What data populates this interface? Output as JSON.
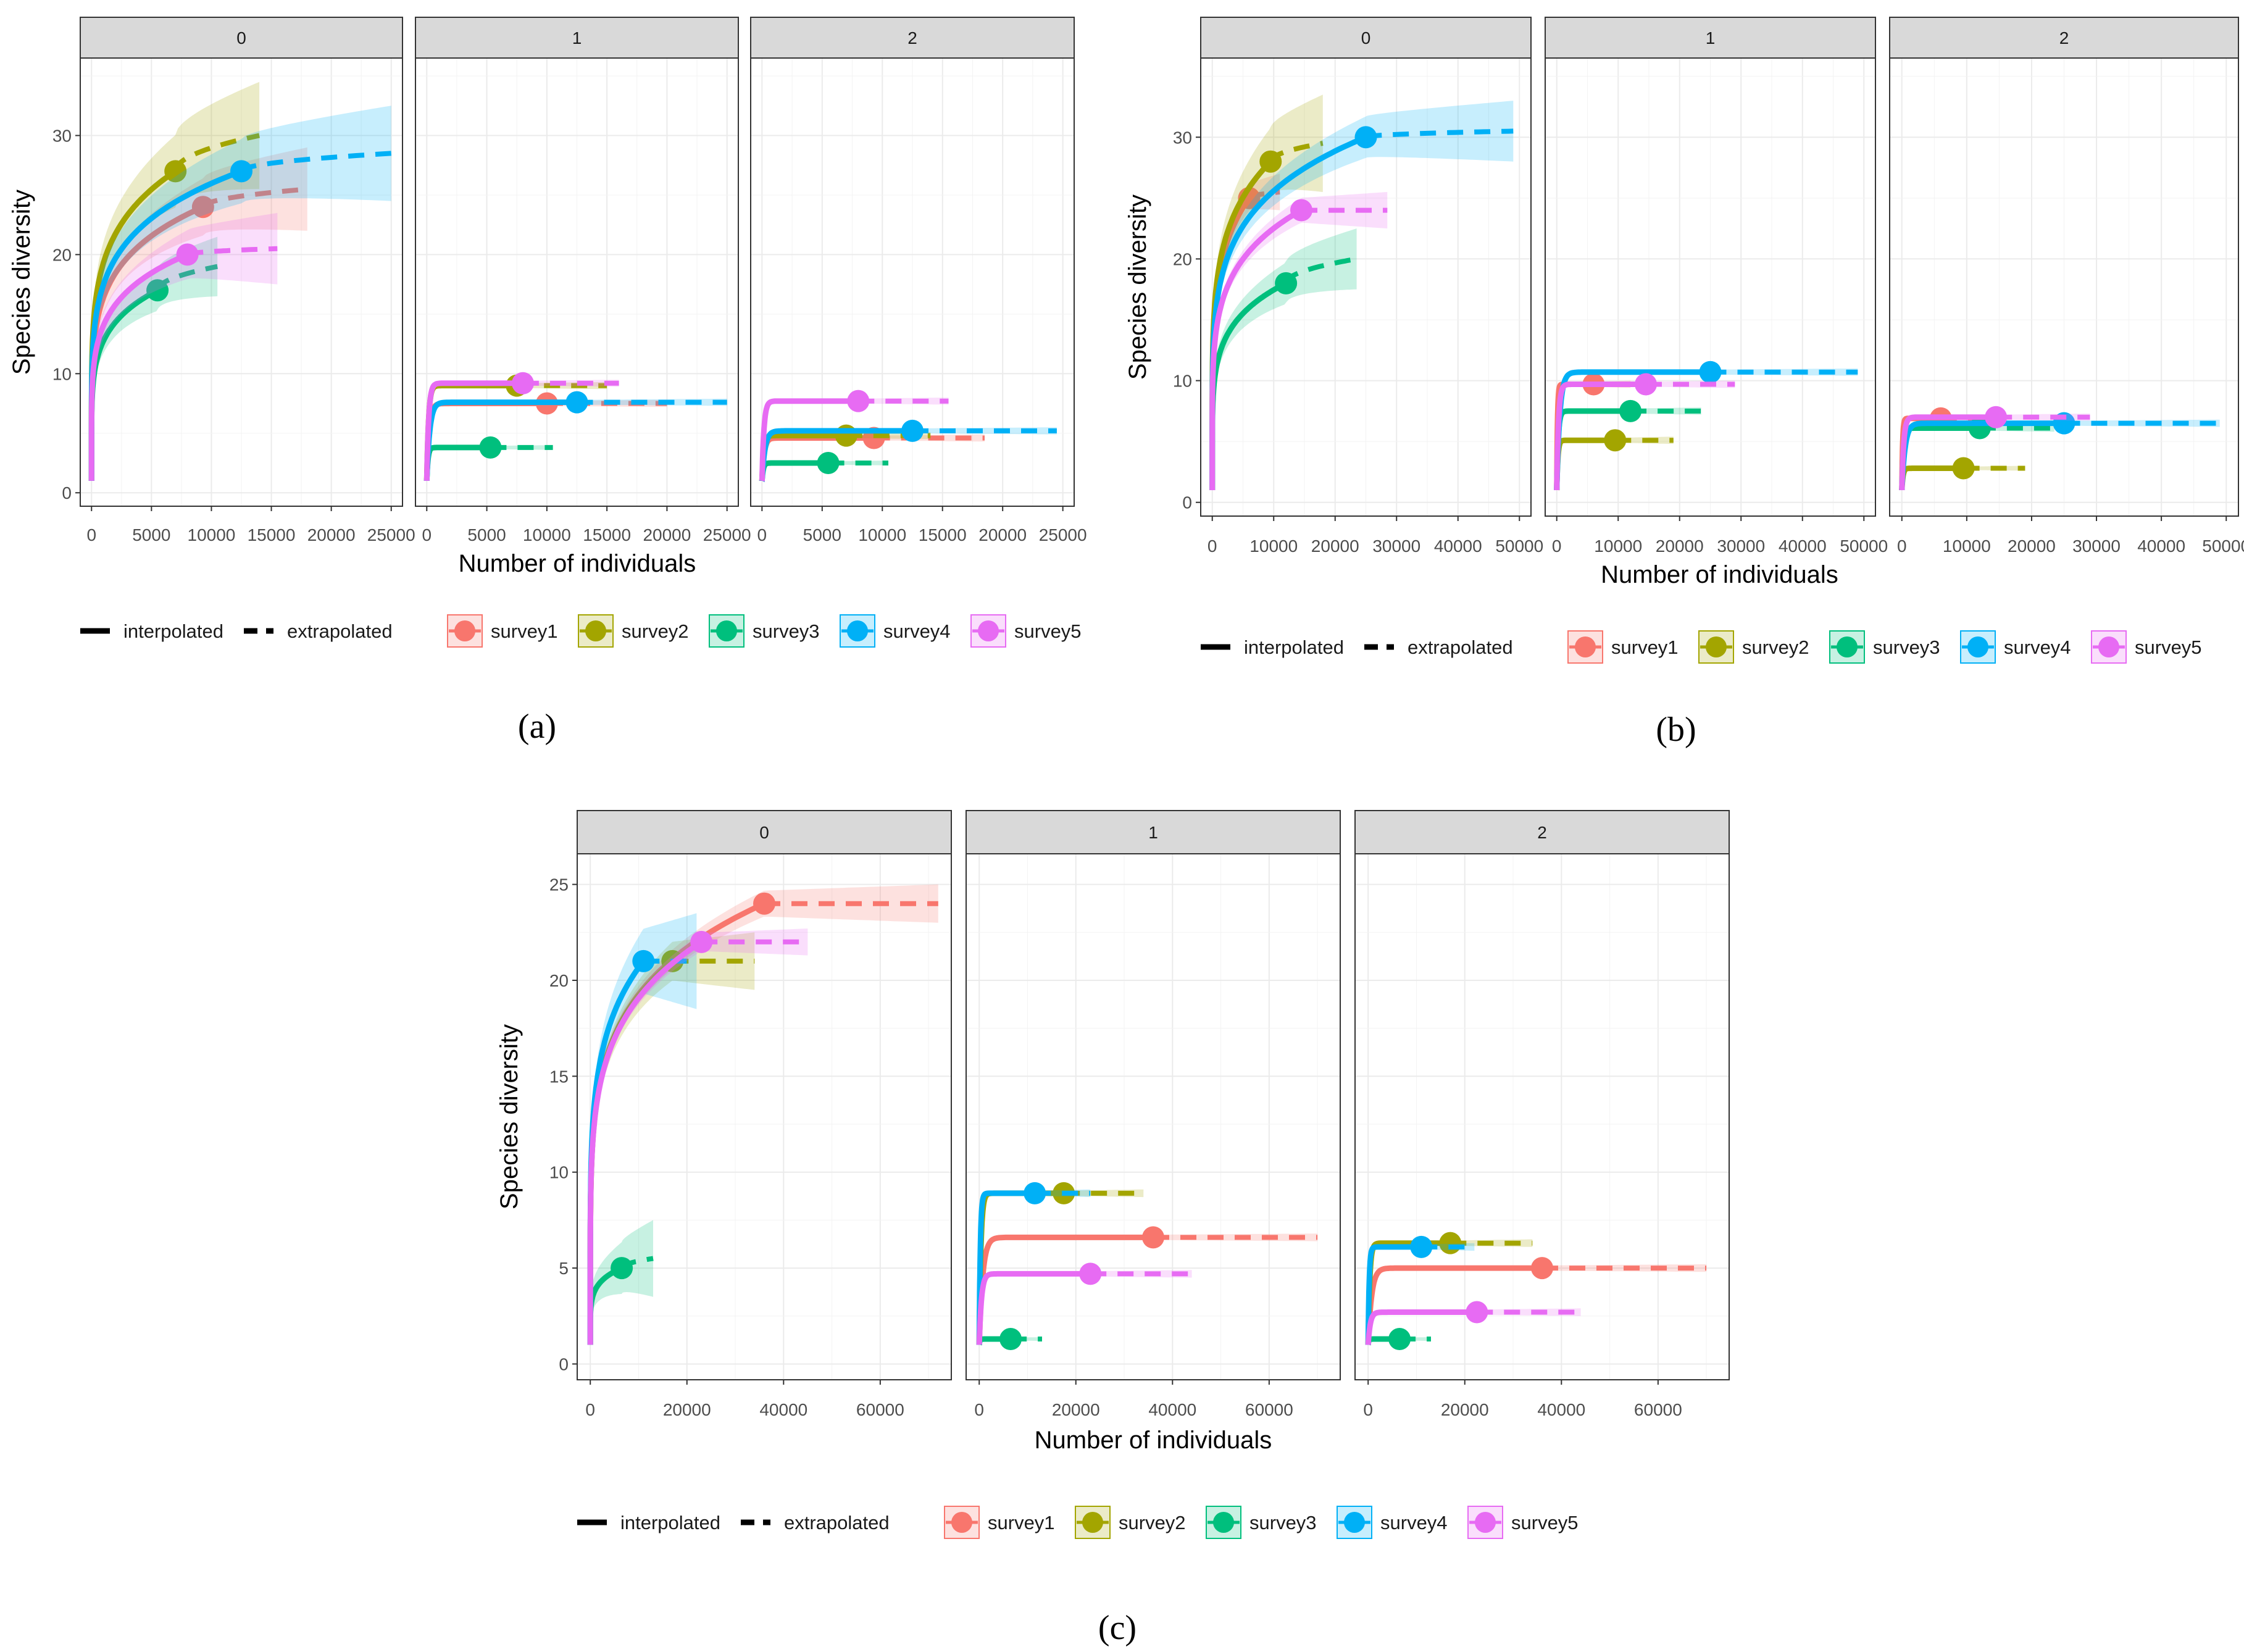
{
  "chart_data": [
    {
      "id": "a",
      "label": "(a)",
      "type": "line",
      "facets": [
        "0",
        "1",
        "2"
      ],
      "xlabel": "Number of individuals",
      "ylabel": "Species diversity",
      "xlim": [
        0,
        25000
      ],
      "ylim": [
        0,
        35
      ],
      "xticks": [
        0,
        5000,
        10000,
        15000,
        20000,
        25000
      ],
      "yticks": [
        0,
        10,
        20,
        30
      ],
      "legend": {
        "linetypes": [
          "interpolated",
          "extrapolated"
        ],
        "series": [
          "survey1",
          "survey2",
          "survey3",
          "survey4",
          "survey5"
        ]
      },
      "panels": [
        {
          "facet": "0",
          "series": [
            {
              "name": "survey1",
              "n": 9300,
              "obs": 24,
              "xmax": 18000,
              "ymax": 25.5,
              "ci": 3.5
            },
            {
              "name": "survey2",
              "n": 7000,
              "obs": 27,
              "xmax": 14000,
              "ymax": 30,
              "ci": 4.5
            },
            {
              "name": "survey3",
              "n": 5500,
              "obs": 17,
              "xmax": 10500,
              "ymax": 19,
              "ci": 2.5
            },
            {
              "name": "survey4",
              "n": 12500,
              "obs": 27,
              "xmax": 25000,
              "ymax": 28.5,
              "ci": 4
            },
            {
              "name": "survey5",
              "n": 8000,
              "obs": 20,
              "xmax": 15500,
              "ymax": 20.5,
              "ci": 3
            }
          ]
        },
        {
          "facet": "1",
          "series": [
            {
              "name": "survey1",
              "n": 10000,
              "obs": 7.5,
              "xmax": 20000,
              "ymax": 7.5,
              "ci": 0.3
            },
            {
              "name": "survey2",
              "n": 7500,
              "obs": 9,
              "xmax": 15000,
              "ymax": 9,
              "ci": 0.3
            },
            {
              "name": "survey3",
              "n": 5300,
              "obs": 3.8,
              "xmax": 10500,
              "ymax": 3.8,
              "ci": 0.2
            },
            {
              "name": "survey4",
              "n": 12500,
              "obs": 7.6,
              "xmax": 25000,
              "ymax": 7.6,
              "ci": 0.3
            },
            {
              "name": "survey5",
              "n": 8000,
              "obs": 9.2,
              "xmax": 16000,
              "ymax": 9.2,
              "ci": 0.3
            }
          ]
        },
        {
          "facet": "2",
          "series": [
            {
              "name": "survey1",
              "n": 9300,
              "obs": 4.6,
              "xmax": 18500,
              "ymax": 4.6,
              "ci": 0.3
            },
            {
              "name": "survey2",
              "n": 7000,
              "obs": 4.8,
              "xmax": 14000,
              "ymax": 4.8,
              "ci": 0.3
            },
            {
              "name": "survey3",
              "n": 5500,
              "obs": 2.5,
              "xmax": 10500,
              "ymax": 2.5,
              "ci": 0.2
            },
            {
              "name": "survey4",
              "n": 12500,
              "obs": 5.2,
              "xmax": 24500,
              "ymax": 5.2,
              "ci": 0.3
            },
            {
              "name": "survey5",
              "n": 8000,
              "obs": 7.7,
              "xmax": 15500,
              "ymax": 7.7,
              "ci": 0.3
            }
          ]
        }
      ]
    },
    {
      "id": "b",
      "label": "(b)",
      "type": "line",
      "facets": [
        "0",
        "1",
        "2"
      ],
      "xlabel": "Number of individuals",
      "ylabel": "Species diversity",
      "xlim": [
        0,
        50000
      ],
      "ylim": [
        0,
        35
      ],
      "xticks": [
        0,
        10000,
        20000,
        30000,
        40000,
        50000
      ],
      "yticks": [
        0,
        10,
        20,
        30
      ],
      "legend": {
        "linetypes": [
          "interpolated",
          "extrapolated"
        ],
        "series": [
          "survey1",
          "survey2",
          "survey3",
          "survey4",
          "survey5"
        ]
      },
      "panels": [
        {
          "facet": "0",
          "series": [
            {
              "name": "survey1",
              "n": 6000,
              "obs": 25,
              "xmax": 11000,
              "ymax": 25.5,
              "ci": 1.5
            },
            {
              "name": "survey2",
              "n": 9500,
              "obs": 28,
              "xmax": 18000,
              "ymax": 29.5,
              "ci": 4
            },
            {
              "name": "survey3",
              "n": 12000,
              "obs": 18,
              "xmax": 23500,
              "ymax": 20,
              "ci": 2.5
            },
            {
              "name": "survey4",
              "n": 25000,
              "obs": 30,
              "xmax": 49000,
              "ymax": 30.5,
              "ci": 2.5
            },
            {
              "name": "survey5",
              "n": 14500,
              "obs": 24,
              "xmax": 28500,
              "ymax": 24,
              "ci": 1.5
            }
          ]
        },
        {
          "facet": "1",
          "series": [
            {
              "name": "survey1",
              "n": 6000,
              "obs": 9.7,
              "xmax": 12000,
              "ymax": 9.7,
              "ci": 0.3
            },
            {
              "name": "survey2",
              "n": 9500,
              "obs": 5.1,
              "xmax": 19000,
              "ymax": 5.1,
              "ci": 0.3
            },
            {
              "name": "survey3",
              "n": 12000,
              "obs": 7.5,
              "xmax": 23500,
              "ymax": 7.5,
              "ci": 0.3
            },
            {
              "name": "survey4",
              "n": 25000,
              "obs": 10.7,
              "xmax": 49000,
              "ymax": 10.7,
              "ci": 0.3
            },
            {
              "name": "survey5",
              "n": 14500,
              "obs": 9.7,
              "xmax": 29000,
              "ymax": 9.7,
              "ci": 0.3
            }
          ]
        },
        {
          "facet": "2",
          "series": [
            {
              "name": "survey1",
              "n": 6000,
              "obs": 6.9,
              "xmax": 12000,
              "ymax": 6.9,
              "ci": 0.3
            },
            {
              "name": "survey2",
              "n": 9500,
              "obs": 2.8,
              "xmax": 19000,
              "ymax": 2.8,
              "ci": 0.2
            },
            {
              "name": "survey3",
              "n": 12000,
              "obs": 6.1,
              "xmax": 23500,
              "ymax": 6.1,
              "ci": 0.3
            },
            {
              "name": "survey4",
              "n": 25000,
              "obs": 6.5,
              "xmax": 49000,
              "ymax": 6.5,
              "ci": 0.3
            },
            {
              "name": "survey5",
              "n": 14500,
              "obs": 7.0,
              "xmax": 29000,
              "ymax": 7.0,
              "ci": 0.3
            }
          ]
        }
      ]
    },
    {
      "id": "c",
      "label": "(c)",
      "type": "line",
      "facets": [
        "0",
        "1",
        "2"
      ],
      "xlabel": "Number of individuals",
      "ylabel": "Species diversity",
      "xlim": [
        0,
        72000
      ],
      "ylim": [
        0,
        25.5
      ],
      "xticks": [
        0,
        20000,
        40000,
        60000
      ],
      "yticks": [
        0,
        5,
        10,
        15,
        20,
        25
      ],
      "legend": {
        "linetypes": [
          "interpolated",
          "extrapolated"
        ],
        "series": [
          "survey1",
          "survey2",
          "survey3",
          "survey4",
          "survey5"
        ]
      },
      "panels": [
        {
          "facet": "0",
          "series": [
            {
              "name": "survey1",
              "n": 36000,
              "obs": 24,
              "xmax": 72000,
              "ymax": 24,
              "ci": 1
            },
            {
              "name": "survey2",
              "n": 17000,
              "obs": 21,
              "xmax": 34000,
              "ymax": 21,
              "ci": 1.5
            },
            {
              "name": "survey3",
              "n": 6500,
              "obs": 5,
              "xmax": 13000,
              "ymax": 5.5,
              "ci": 2
            },
            {
              "name": "survey4",
              "n": 11000,
              "obs": 21,
              "xmax": 22000,
              "ymax": 21,
              "ci": 2.5
            },
            {
              "name": "survey5",
              "n": 23000,
              "obs": 22,
              "xmax": 45000,
              "ymax": 22,
              "ci": 0.7
            }
          ]
        },
        {
          "facet": "1",
          "series": [
            {
              "name": "survey1",
              "n": 36000,
              "obs": 6.6,
              "xmax": 70000,
              "ymax": 6.6,
              "ci": 0.2
            },
            {
              "name": "survey2",
              "n": 17500,
              "obs": 8.9,
              "xmax": 34000,
              "ymax": 8.9,
              "ci": 0.2
            },
            {
              "name": "survey3",
              "n": 6500,
              "obs": 1.3,
              "xmax": 13000,
              "ymax": 1.3,
              "ci": 0.1
            },
            {
              "name": "survey4",
              "n": 11500,
              "obs": 8.9,
              "xmax": 23000,
              "ymax": 8.9,
              "ci": 0.2
            },
            {
              "name": "survey5",
              "n": 23000,
              "obs": 4.7,
              "xmax": 44000,
              "ymax": 4.7,
              "ci": 0.2
            }
          ]
        },
        {
          "facet": "2",
          "series": [
            {
              "name": "survey1",
              "n": 36000,
              "obs": 5.0,
              "xmax": 70000,
              "ymax": 5.0,
              "ci": 0.2
            },
            {
              "name": "survey2",
              "n": 17000,
              "obs": 6.3,
              "xmax": 34000,
              "ymax": 6.3,
              "ci": 0.2
            },
            {
              "name": "survey3",
              "n": 6500,
              "obs": 1.3,
              "xmax": 13000,
              "ymax": 1.3,
              "ci": 0.1
            },
            {
              "name": "survey4",
              "n": 11000,
              "obs": 6.1,
              "xmax": 22000,
              "ymax": 6.1,
              "ci": 0.2
            },
            {
              "name": "survey5",
              "n": 22500,
              "obs": 2.7,
              "xmax": 44000,
              "ymax": 2.7,
              "ci": 0.2
            }
          ]
        }
      ]
    }
  ],
  "colors": {
    "survey1": "#F8766D",
    "survey2": "#A3A500",
    "survey3": "#00BF7D",
    "survey4": "#00B0F6",
    "survey5": "#E76BF3"
  }
}
